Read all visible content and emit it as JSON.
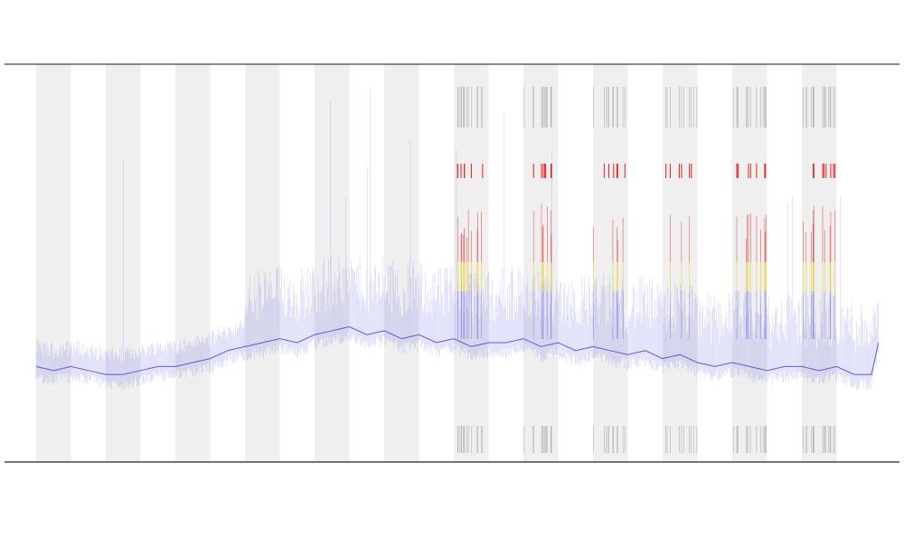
{
  "chart_data": {
    "type": "line",
    "title": "",
    "xlabel": "",
    "ylabel": "",
    "grid": false,
    "legend": "none",
    "x_ticks": [],
    "night_bands": [
      [
        0,
        1
      ],
      [
        2,
        3
      ],
      [
        4,
        5
      ],
      [
        6,
        7
      ],
      [
        8,
        9
      ],
      [
        10,
        11
      ],
      [
        12,
        13
      ],
      [
        14,
        15
      ],
      [
        16,
        17
      ],
      [
        18,
        19
      ],
      [
        20,
        21
      ],
      [
        22,
        23
      ]
    ],
    "xlim": [
      0,
      24.5
    ],
    "ylim": [
      0,
      100
    ],
    "series": [
      {
        "color": "#3b3bd9",
        "y_description": "activity level",
        "points": [
          [
            0.0,
            24
          ],
          [
            0.5,
            23
          ],
          [
            1.0,
            24
          ],
          [
            1.5,
            23
          ],
          [
            2.0,
            22
          ],
          [
            2.5,
            22
          ],
          [
            3.0,
            23
          ],
          [
            3.5,
            24
          ],
          [
            4.0,
            24
          ],
          [
            4.5,
            25
          ],
          [
            5.0,
            26
          ],
          [
            5.5,
            28
          ],
          [
            6.0,
            29
          ],
          [
            6.5,
            30
          ],
          [
            7.0,
            31
          ],
          [
            7.5,
            30
          ],
          [
            8.0,
            32
          ],
          [
            8.5,
            33
          ],
          [
            9.0,
            34
          ],
          [
            9.5,
            32
          ],
          [
            10.0,
            33
          ],
          [
            10.5,
            31
          ],
          [
            11.0,
            32
          ],
          [
            11.5,
            30
          ],
          [
            12.0,
            31
          ],
          [
            12.5,
            29
          ],
          [
            13.0,
            30
          ],
          [
            13.5,
            30
          ],
          [
            14.0,
            31
          ],
          [
            14.5,
            29
          ],
          [
            15.0,
            30
          ],
          [
            15.5,
            28
          ],
          [
            16.0,
            29
          ],
          [
            16.5,
            28
          ],
          [
            17.0,
            27
          ],
          [
            17.5,
            28
          ],
          [
            18.0,
            26
          ],
          [
            18.5,
            27
          ],
          [
            19.0,
            25
          ],
          [
            19.5,
            24
          ],
          [
            20.0,
            25
          ],
          [
            20.5,
            24
          ],
          [
            21.0,
            23
          ],
          [
            21.5,
            24
          ],
          [
            22.0,
            24
          ],
          [
            22.5,
            23
          ],
          [
            23.0,
            24
          ],
          [
            23.5,
            22
          ],
          [
            24.0,
            22
          ],
          [
            24.2,
            30
          ]
        ]
      }
    ],
    "event_colors": {
      "high": "#e02020",
      "mid": "#e8d020",
      "low": "#7a7aee"
    }
  }
}
